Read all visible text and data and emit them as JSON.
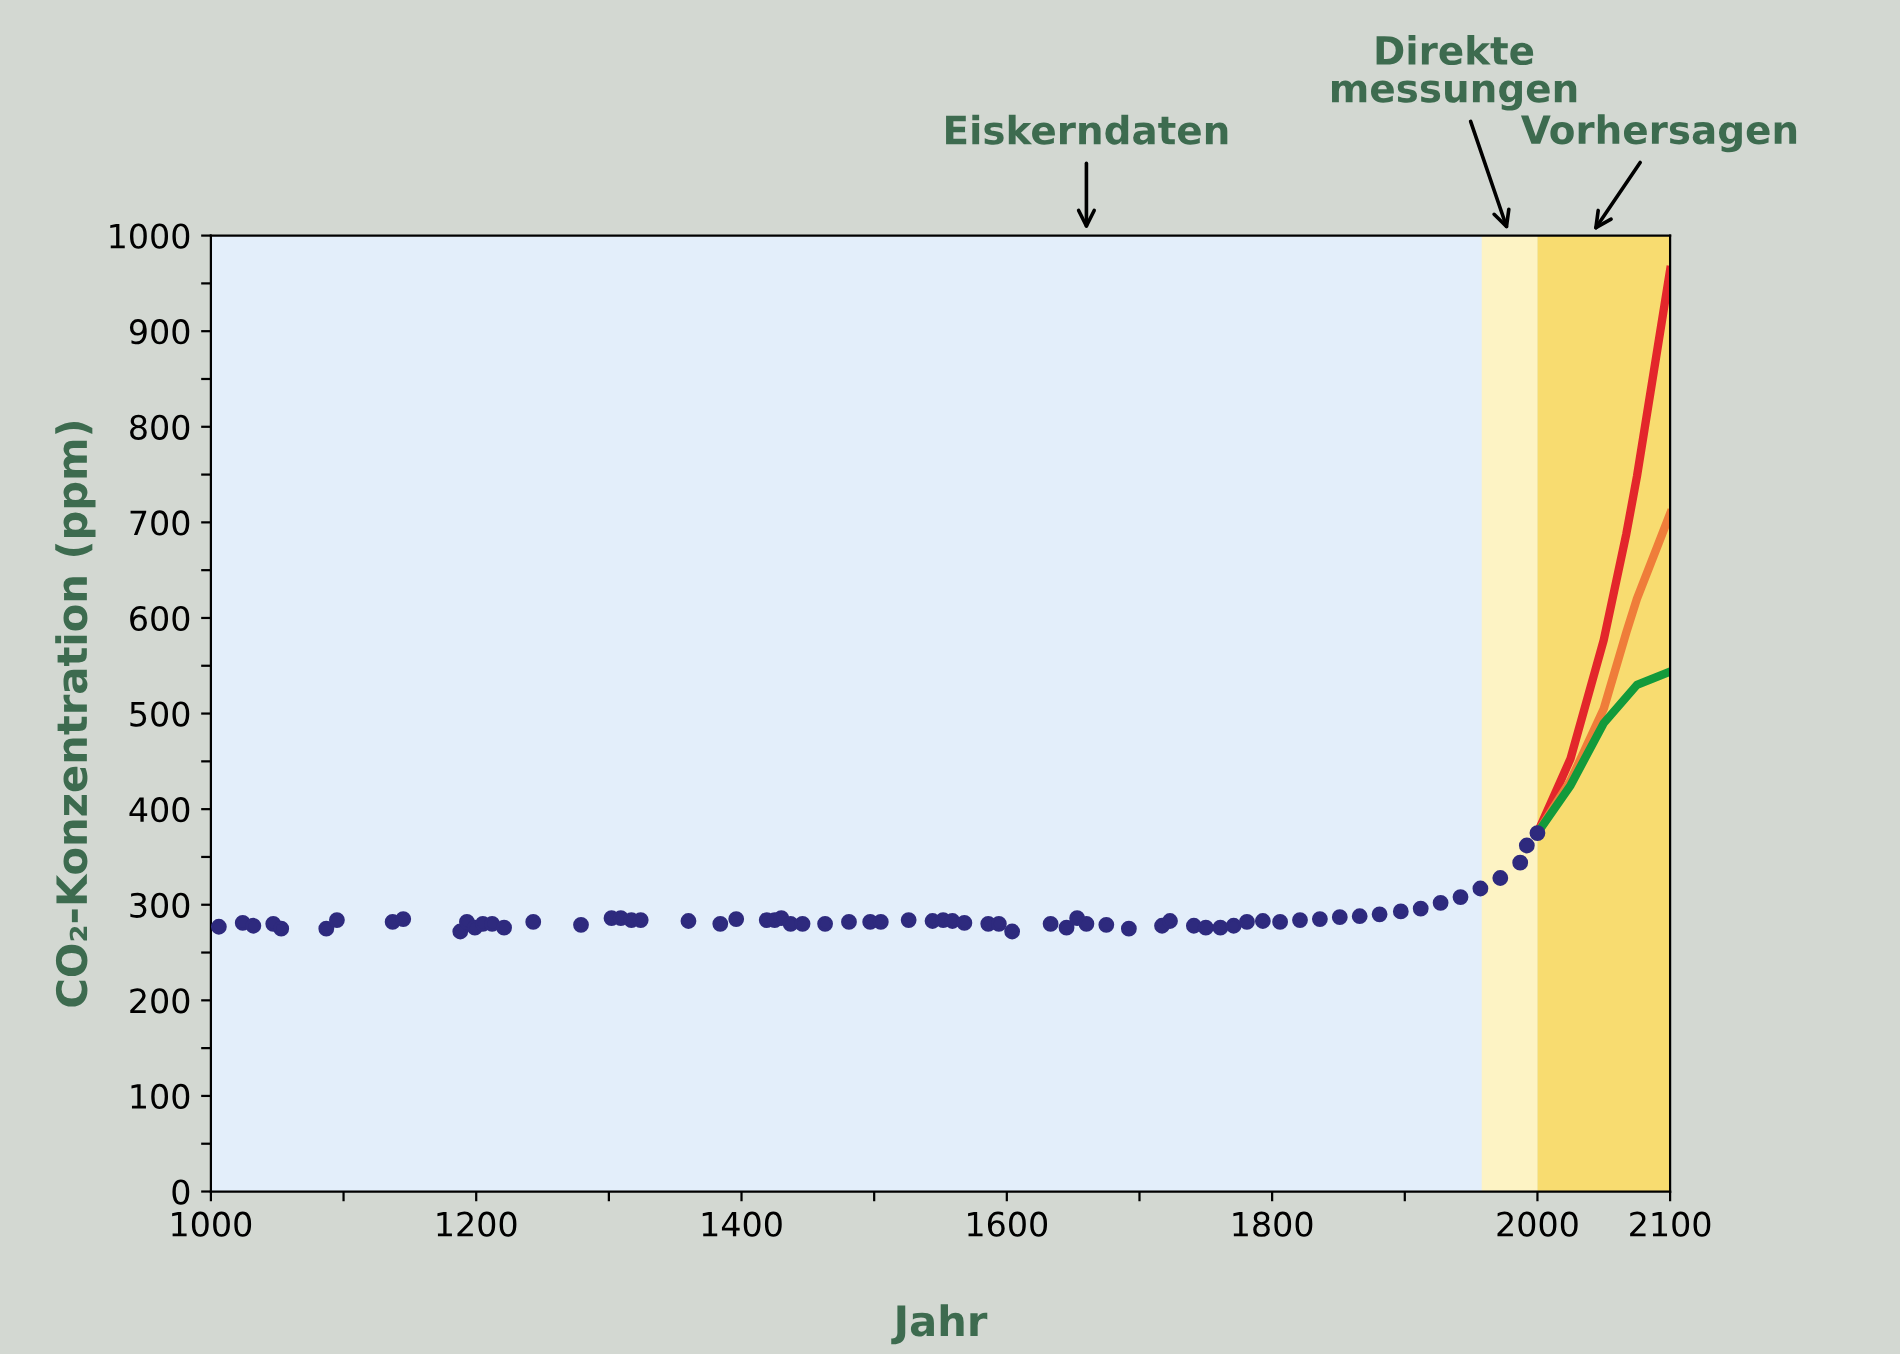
{
  "chart_data": {
    "type": "scatter",
    "xlabel": "Jahr",
    "ylabel": "CO₂-Konzentration (ppm)",
    "xlim": [
      1000,
      2100
    ],
    "ylim": [
      0,
      1000
    ],
    "xticks": [
      1000,
      {
        "value": 1100,
        "label": null
      },
      1200,
      {
        "value": 1300,
        "label": null
      },
      1400,
      {
        "value": 1500,
        "label": null
      },
      1600,
      {
        "value": 1700,
        "label": null
      },
      1800,
      {
        "value": 1900,
        "label": null
      },
      2000,
      2100
    ],
    "yticks": [
      0,
      {
        "value": 50,
        "label": null
      },
      100,
      {
        "value": 150,
        "label": null
      },
      200,
      {
        "value": 250,
        "label": null
      },
      300,
      {
        "value": 350,
        "label": null
      },
      400,
      {
        "value": 450,
        "label": null
      },
      500,
      {
        "value": 550,
        "label": null
      },
      600,
      {
        "value": 650,
        "label": null
      },
      700,
      {
        "value": 750,
        "label": null
      },
      800,
      {
        "value": 850,
        "label": null
      },
      900,
      {
        "value": 950,
        "label": null
      },
      1000
    ],
    "grid": false,
    "legend": false,
    "bands": [
      {
        "axis": "x",
        "from": 1958,
        "to": 2000,
        "color": "#fdf3c4",
        "label": "Direkte\nmessungen"
      },
      {
        "axis": "x",
        "from": 2000,
        "to": 2100,
        "color": "#f8dc70",
        "label": "Vorhersagen"
      }
    ],
    "annotations": [
      "Eiskerndaten"
    ],
    "series": [
      {
        "marker": "circle",
        "color": "#2e2a7e",
        "x": [
          1006,
          1024,
          1032,
          1047,
          1053,
          1087,
          1095,
          1137,
          1145,
          1188,
          1193,
          1199,
          1205,
          1212,
          1221,
          1243,
          1279,
          1302,
          1309,
          1317,
          1324,
          1360,
          1384,
          1396,
          1419,
          1425,
          1430,
          1437,
          1446,
          1463,
          1481,
          1497,
          1505,
          1526,
          1544,
          1552,
          1559,
          1568,
          1586,
          1594,
          1604,
          1633,
          1645,
          1653,
          1660,
          1675,
          1692,
          1717,
          1723,
          1741,
          1750,
          1761,
          1771,
          1781,
          1793,
          1806,
          1821,
          1836,
          1851,
          1866,
          1881,
          1897,
          1912,
          1927,
          1942,
          1957,
          1972,
          1987,
          1992,
          2000
        ],
        "values": [
          277,
          281,
          278,
          280,
          275,
          275,
          284,
          282,
          285,
          272,
          282,
          276,
          280,
          280,
          276,
          282,
          279,
          286,
          286,
          284,
          284,
          283,
          280,
          285,
          284,
          284,
          286,
          280,
          280,
          280,
          282,
          282,
          282,
          284,
          283,
          284,
          283,
          281,
          280,
          280,
          272,
          280,
          276,
          286,
          280,
          279,
          275,
          278,
          283,
          278,
          276,
          276,
          278,
          282,
          283,
          282,
          284,
          285,
          287,
          288,
          290,
          293,
          296,
          302,
          308,
          317,
          328,
          344,
          362,
          375
        ]
      },
      {
        "type": "line",
        "marker": "none",
        "color": "#e3262b",
        "x": [
          2000,
          2025,
          2050,
          2067,
          2075,
          2100
        ],
        "values": [
          375,
          453,
          577,
          688,
          748,
          964
        ]
      },
      {
        "type": "line",
        "marker": "none",
        "color": "#ef7d3a",
        "x": [
          2000,
          2025,
          2050,
          2067,
          2075,
          2100
        ],
        "values": [
          375,
          430,
          505,
          585,
          620,
          709
        ]
      },
      {
        "type": "line",
        "marker": "none",
        "color": "#139a3b",
        "x": [
          2000,
          2025,
          2050,
          2075,
          2100
        ],
        "values": [
          375,
          425,
          490,
          530,
          544
        ]
      }
    ]
  }
}
